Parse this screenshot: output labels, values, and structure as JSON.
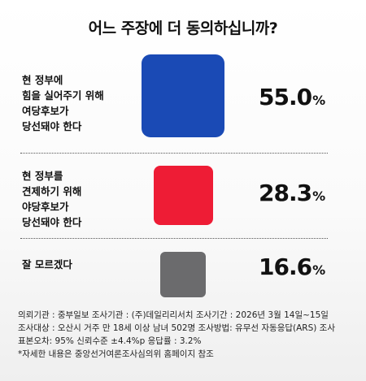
{
  "title": "어느 주장에 더 동의하십니까?",
  "chart_data": {
    "type": "bar",
    "categories": [
      "현 정부에 힘을 실어주기 위해 여당후보가 당선돼야 한다",
      "현 정부를 견제하기 위해 야당후보가 당선돼야 한다",
      "잘 모르겠다"
    ],
    "series": [
      {
        "values": [
          55.0,
          28.3,
          16.6
        ]
      }
    ],
    "unit": "%"
  },
  "rows": [
    {
      "label_lines": [
        "현 정부에",
        "힘을 실어주기 위해",
        "여당후보가",
        "당선돼야 한다"
      ],
      "value": "55.0",
      "pct": "%",
      "color": "#1a4ab5"
    },
    {
      "label_lines": [
        "현 정부를",
        "견제하기 위해",
        "야당후보가",
        "당선돼야 한다"
      ],
      "value": "28.3",
      "pct": "%",
      "color": "#ee1c35"
    },
    {
      "label_lines": [
        "잘 모르겠다"
      ],
      "value": "16.6",
      "pct": "%",
      "color": "#6b6b6d"
    }
  ],
  "footer": {
    "lines": [
      "의뢰기관 : 중부일보    조사기관 : (주)데일리리서치    조사기간 : 2026년 3월 14일~15일",
      "조사대상 : 오산시 거주 만 18세 이상 남녀 502명    조사방법: 유무선 자동응답(ARS) 조사",
      "표본오차: 95% 신뢰수준 ±4.4%p    응답률 : 3.2%",
      "*자세한 내용은 중앙선거여론조사심의위 홈페이지 참조"
    ]
  }
}
